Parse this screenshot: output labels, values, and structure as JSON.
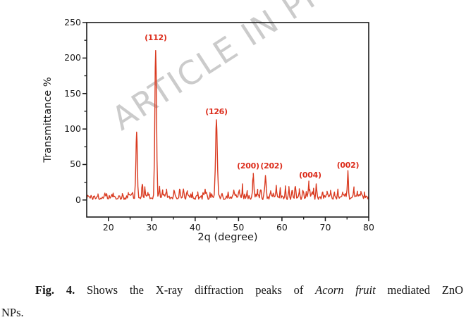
{
  "watermark": {
    "text": "ARTICLE IN PRESS",
    "color": "#cbcbcb"
  },
  "chart_data": {
    "type": "line",
    "title": "",
    "xlabel": "2q (degree)",
    "ylabel": "Transmittance %",
    "xlim": [
      15,
      80
    ],
    "ylim": [
      -24,
      250
    ],
    "x_major_ticks": [
      20,
      30,
      40,
      50,
      60,
      70,
      80
    ],
    "x_minor_ticks": [
      25,
      35,
      45,
      55,
      65,
      75
    ],
    "y_major_ticks": [
      0,
      50,
      100,
      150,
      200,
      250
    ],
    "y_minor_ticks": [
      25,
      75,
      125,
      175,
      225
    ],
    "grid": false,
    "legend": null,
    "axis_color": "#1a1a1a",
    "annotation_color": "#dc2d1c",
    "series": [
      {
        "name": "XRD pattern of Acorn fruit mediated ZnO NPs",
        "color": "#d93a20",
        "peaks": [
          {
            "hkl": "",
            "two_theta": 26.5,
            "intensity": 97,
            "sigma": 0.16
          },
          {
            "hkl": "",
            "two_theta": 27.8,
            "intensity": 26,
            "sigma": 0.11
          },
          {
            "hkl": "(112)",
            "two_theta": 30.9,
            "intensity": 213,
            "sigma": 0.18
          },
          {
            "hkl": "(126)",
            "two_theta": 44.9,
            "intensity": 115,
            "sigma": 0.2
          },
          {
            "hkl": "(200)",
            "two_theta": 53.4,
            "intensity": 37,
            "sigma": 0.14
          },
          {
            "hkl": "(202)",
            "two_theta": 56.2,
            "intensity": 36,
            "sigma": 0.14
          },
          {
            "hkl": "(004)",
            "two_theta": 66.2,
            "intensity": 22,
            "sigma": 0.12
          },
          {
            "hkl": "(002)",
            "two_theta": 75.2,
            "intensity": 39,
            "sigma": 0.12
          }
        ],
        "baseline": {
          "level": 4,
          "noise_amplitude": 9
        },
        "minor_bumps": [
          [
            17.6,
            4
          ],
          [
            19.2,
            5
          ],
          [
            21.1,
            4
          ],
          [
            23.2,
            5
          ],
          [
            24.6,
            6
          ],
          [
            25.6,
            7
          ],
          [
            28.4,
            14
          ],
          [
            29.1,
            7
          ],
          [
            31.8,
            13
          ],
          [
            32.5,
            9
          ],
          [
            33.4,
            8
          ],
          [
            35.1,
            7
          ],
          [
            36.5,
            11
          ],
          [
            37.3,
            13
          ],
          [
            38.2,
            6
          ],
          [
            39.4,
            6
          ],
          [
            40.6,
            5
          ],
          [
            42.3,
            8
          ],
          [
            43.4,
            7
          ],
          [
            46.3,
            6
          ],
          [
            47.6,
            9
          ],
          [
            48.9,
            6
          ],
          [
            50.2,
            7
          ],
          [
            50.9,
            11
          ],
          [
            52.0,
            7
          ],
          [
            54.4,
            7
          ],
          [
            55.1,
            8
          ],
          [
            57.4,
            8
          ],
          [
            58.7,
            14
          ],
          [
            59.6,
            12
          ],
          [
            60.8,
            15
          ],
          [
            61.6,
            10
          ],
          [
            62.3,
            12
          ],
          [
            63.1,
            16
          ],
          [
            64.0,
            9
          ],
          [
            64.9,
            10
          ],
          [
            65.6,
            8
          ],
          [
            67.3,
            7
          ],
          [
            67.9,
            11
          ],
          [
            69.3,
            8
          ],
          [
            70.4,
            6
          ],
          [
            71.2,
            9
          ],
          [
            72.1,
            6
          ],
          [
            72.9,
            9
          ],
          [
            74.0,
            7
          ],
          [
            76.6,
            11
          ],
          [
            77.4,
            8
          ],
          [
            78.2,
            9
          ],
          [
            79.0,
            5
          ]
        ]
      }
    ],
    "annotations": [
      {
        "text": "(112)",
        "x": 30.9,
        "y": 228
      },
      {
        "text": "(126)",
        "x": 44.9,
        "y": 124
      },
      {
        "text": "(200)",
        "x": 52.2,
        "y": 47
      },
      {
        "text": "(202)",
        "x": 57.6,
        "y": 47
      },
      {
        "text": "(004)",
        "x": 66.5,
        "y": 35
      },
      {
        "text": "(002)",
        "x": 75.2,
        "y": 48
      }
    ]
  },
  "caption": {
    "fig_label": "Fig. 4.",
    "text_before_italic": "Shows the X-ray diffraction peaks of",
    "italic_text": "Acorn fruit",
    "text_after_italic": "mediated ZnO",
    "line2": "NPs."
  }
}
